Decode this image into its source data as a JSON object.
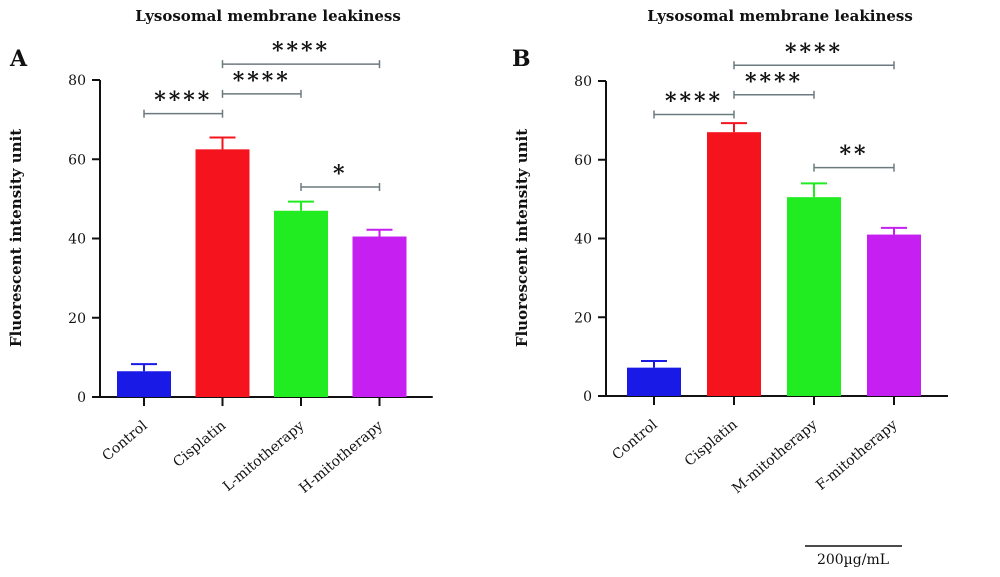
{
  "chart_data": [
    {
      "type": "bar",
      "panel_label": "A",
      "title": "Lysosomal membrane leakiness",
      "ylabel": "Fluorescent intensity unit",
      "xlabel": "",
      "ylim": [
        0,
        80
      ],
      "yticks": [
        "0",
        "20",
        "40",
        "60",
        "80"
      ],
      "grid": false,
      "categories": [
        "Control",
        "Cisplatin",
        "L-mitotherapy",
        "H-mitotherapy"
      ],
      "values": [
        6.5,
        62.5,
        47,
        40.5
      ],
      "errors": [
        1.8,
        3,
        2.3,
        1.7
      ],
      "colors": [
        "#1a1ae6",
        "#f5141e",
        "#21ec21",
        "#c51ff2"
      ],
      "significance": [
        {
          "from": 0,
          "to": 1,
          "label": "****",
          "y": 71.5
        },
        {
          "from": 1,
          "to": 2,
          "label": "****",
          "y": 76.5
        },
        {
          "from": 1,
          "to": 3,
          "label": "****",
          "y": 84
        },
        {
          "from": 2,
          "to": 3,
          "label": "*",
          "y": 53
        }
      ]
    },
    {
      "type": "bar",
      "panel_label": "B",
      "title": "Lysosomal membrane leakiness",
      "ylabel": "Fluorescent intensity unit",
      "xlabel": "",
      "ylim": [
        0,
        80
      ],
      "yticks": [
        "0",
        "20",
        "40",
        "60",
        "80"
      ],
      "grid": false,
      "categories": [
        "Control",
        "Cisplatin",
        "M-mitotherapy",
        "F-mitotherapy"
      ],
      "values": [
        7.2,
        67,
        50.5,
        41
      ],
      "errors": [
        1.7,
        2.3,
        3.5,
        1.7
      ],
      "colors": [
        "#1a1ae6",
        "#f5141e",
        "#21ec21",
        "#c51ff2"
      ],
      "significance": [
        {
          "from": 0,
          "to": 1,
          "label": "****",
          "y": 71.5
        },
        {
          "from": 1,
          "to": 2,
          "label": "****",
          "y": 76.5
        },
        {
          "from": 1,
          "to": 3,
          "label": "****",
          "y": 84
        },
        {
          "from": 2,
          "to": 3,
          "label": "**",
          "y": 58
        }
      ]
    }
  ],
  "footnote": "200µg/mL"
}
